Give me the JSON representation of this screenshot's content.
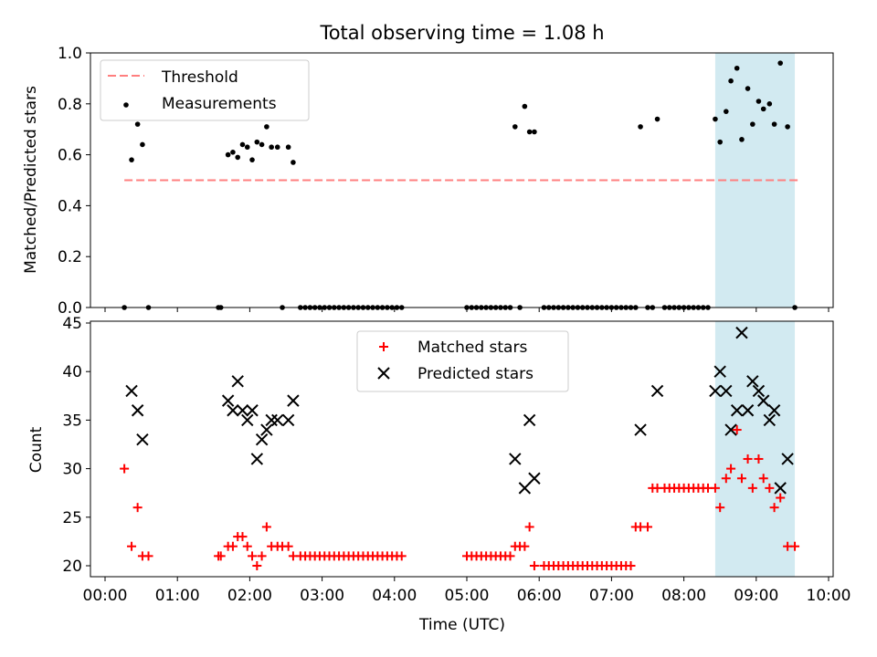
{
  "chart_data": [
    {
      "type": "scatter",
      "title": "Total observing time = 1.08 h",
      "xlabel": "",
      "ylabel": "Matched/Predicted stars",
      "xlim": [
        "00:00",
        "10:00"
      ],
      "ylim": [
        0,
        1.0
      ],
      "yticks": [
        "0.0",
        "0.2",
        "0.4",
        "0.6",
        "0.8",
        "1.0"
      ],
      "highlight_span": [
        "08:26",
        "09:32"
      ],
      "highlight_color": "#add8e6",
      "legend": {
        "placement": "upper left",
        "entries": [
          {
            "label": "Threshold",
            "color": "#ff7f7f",
            "style": "dashed-line"
          },
          {
            "label": "Measurements",
            "color": "#000000",
            "style": "dot"
          }
        ]
      },
      "threshold": {
        "y": 0.5,
        "x": [
          "00:16",
          "09:37"
        ]
      },
      "series": [
        {
          "name": "Measurements",
          "points": [
            [
              "00:16",
              0
            ],
            [
              "00:22",
              0.58
            ],
            [
              "00:27",
              0.72
            ],
            [
              "00:31",
              0.64
            ],
            [
              "00:36",
              0
            ],
            [
              "01:34",
              0
            ],
            [
              "01:36",
              0
            ],
            [
              "01:42",
              0.6
            ],
            [
              "01:46",
              0.61
            ],
            [
              "01:50",
              0.59
            ],
            [
              "01:54",
              0.64
            ],
            [
              "01:58",
              0.63
            ],
            [
              "02:02",
              0.58
            ],
            [
              "02:06",
              0.65
            ],
            [
              "02:10",
              0.64
            ],
            [
              "02:14",
              0.71
            ],
            [
              "02:18",
              0.63
            ],
            [
              "02:23",
              0.63
            ],
            [
              "02:27",
              0
            ],
            [
              "02:32",
              0.63
            ],
            [
              "02:36",
              0.57
            ],
            [
              "02:42",
              0
            ],
            [
              "02:46",
              0
            ],
            [
              "02:50",
              0
            ],
            [
              "02:54",
              0
            ],
            [
              "02:58",
              0
            ],
            [
              "03:02",
              0
            ],
            [
              "03:06",
              0
            ],
            [
              "03:10",
              0
            ],
            [
              "03:14",
              0
            ],
            [
              "03:18",
              0
            ],
            [
              "03:22",
              0
            ],
            [
              "03:26",
              0
            ],
            [
              "03:30",
              0
            ],
            [
              "03:34",
              0
            ],
            [
              "03:38",
              0
            ],
            [
              "03:42",
              0
            ],
            [
              "03:46",
              0
            ],
            [
              "03:50",
              0
            ],
            [
              "03:54",
              0
            ],
            [
              "03:58",
              0
            ],
            [
              "04:02",
              0
            ],
            [
              "04:06",
              0
            ],
            [
              "05:00",
              0
            ],
            [
              "05:04",
              0
            ],
            [
              "05:08",
              0
            ],
            [
              "05:12",
              0
            ],
            [
              "05:16",
              0
            ],
            [
              "05:20",
              0
            ],
            [
              "05:24",
              0
            ],
            [
              "05:28",
              0
            ],
            [
              "05:32",
              0
            ],
            [
              "05:36",
              0
            ],
            [
              "05:40",
              0.71
            ],
            [
              "05:44",
              0
            ],
            [
              "05:48",
              0.79
            ],
            [
              "05:52",
              0.69
            ],
            [
              "05:56",
              0.69
            ],
            [
              "06:04",
              0
            ],
            [
              "06:08",
              0
            ],
            [
              "06:12",
              0
            ],
            [
              "06:16",
              0
            ],
            [
              "06:20",
              0
            ],
            [
              "06:24",
              0
            ],
            [
              "06:28",
              0
            ],
            [
              "06:32",
              0
            ],
            [
              "06:36",
              0
            ],
            [
              "06:40",
              0
            ],
            [
              "06:44",
              0
            ],
            [
              "06:48",
              0
            ],
            [
              "06:52",
              0
            ],
            [
              "06:56",
              0
            ],
            [
              "07:00",
              0
            ],
            [
              "07:04",
              0
            ],
            [
              "07:08",
              0
            ],
            [
              "07:12",
              0
            ],
            [
              "07:16",
              0
            ],
            [
              "07:20",
              0
            ],
            [
              "07:24",
              0.71
            ],
            [
              "07:30",
              0
            ],
            [
              "07:34",
              0
            ],
            [
              "07:38",
              0.74
            ],
            [
              "07:44",
              0
            ],
            [
              "07:48",
              0
            ],
            [
              "07:52",
              0
            ],
            [
              "07:56",
              0
            ],
            [
              "08:00",
              0
            ],
            [
              "08:04",
              0
            ],
            [
              "08:08",
              0
            ],
            [
              "08:12",
              0
            ],
            [
              "08:16",
              0
            ],
            [
              "08:20",
              0
            ],
            [
              "08:26",
              0.74
            ],
            [
              "08:30",
              0.65
            ],
            [
              "08:35",
              0.77
            ],
            [
              "08:39",
              0.89
            ],
            [
              "08:44",
              0.94
            ],
            [
              "08:48",
              0.66
            ],
            [
              "08:53",
              0.86
            ],
            [
              "08:57",
              0.72
            ],
            [
              "09:02",
              0.81
            ],
            [
              "09:06",
              0.78
            ],
            [
              "09:11",
              0.8
            ],
            [
              "09:15",
              0.72
            ],
            [
              "09:20",
              0.96
            ],
            [
              "09:26",
              0.71
            ],
            [
              "09:32",
              0
            ]
          ]
        }
      ]
    },
    {
      "type": "scatter",
      "title": "",
      "xlabel": "Time (UTC)",
      "ylabel": "Count",
      "xlim": [
        "00:00",
        "10:00"
      ],
      "ylim": [
        19,
        45
      ],
      "xticks": [
        "00:00",
        "01:00",
        "02:00",
        "03:00",
        "04:00",
        "05:00",
        "06:00",
        "07:00",
        "08:00",
        "09:00",
        "10:00"
      ],
      "yticks": [
        "20",
        "25",
        "30",
        "35",
        "40",
        "45"
      ],
      "highlight_span": [
        "08:26",
        "09:32"
      ],
      "highlight_color": "#add8e6",
      "legend": {
        "placement": "upper center",
        "entries": [
          {
            "label": "Matched stars",
            "color": "#ff0000",
            "style": "plus"
          },
          {
            "label": "Predicted stars",
            "color": "#000000",
            "style": "x"
          }
        ]
      },
      "series": [
        {
          "name": "Matched stars",
          "points": [
            [
              "00:16",
              30
            ],
            [
              "00:22",
              22
            ],
            [
              "00:27",
              26
            ],
            [
              "00:31",
              21
            ],
            [
              "00:36",
              21
            ],
            [
              "01:34",
              21
            ],
            [
              "01:36",
              21
            ],
            [
              "01:42",
              22
            ],
            [
              "01:46",
              22
            ],
            [
              "01:50",
              23
            ],
            [
              "01:54",
              23
            ],
            [
              "01:58",
              22
            ],
            [
              "02:02",
              21
            ],
            [
              "02:06",
              20
            ],
            [
              "02:10",
              21
            ],
            [
              "02:14",
              24
            ],
            [
              "02:18",
              22
            ],
            [
              "02:23",
              22
            ],
            [
              "02:27",
              22
            ],
            [
              "02:32",
              22
            ],
            [
              "02:36",
              21
            ],
            [
              "02:42",
              21
            ],
            [
              "02:46",
              21
            ],
            [
              "02:50",
              21
            ],
            [
              "02:54",
              21
            ],
            [
              "02:58",
              21
            ],
            [
              "03:02",
              21
            ],
            [
              "03:06",
              21
            ],
            [
              "03:10",
              21
            ],
            [
              "03:14",
              21
            ],
            [
              "03:18",
              21
            ],
            [
              "03:22",
              21
            ],
            [
              "03:26",
              21
            ],
            [
              "03:30",
              21
            ],
            [
              "03:34",
              21
            ],
            [
              "03:38",
              21
            ],
            [
              "03:42",
              21
            ],
            [
              "03:46",
              21
            ],
            [
              "03:50",
              21
            ],
            [
              "03:54",
              21
            ],
            [
              "03:58",
              21
            ],
            [
              "04:02",
              21
            ],
            [
              "04:06",
              21
            ],
            [
              "05:00",
              21
            ],
            [
              "05:04",
              21
            ],
            [
              "05:08",
              21
            ],
            [
              "05:12",
              21
            ],
            [
              "05:16",
              21
            ],
            [
              "05:20",
              21
            ],
            [
              "05:24",
              21
            ],
            [
              "05:28",
              21
            ],
            [
              "05:32",
              21
            ],
            [
              "05:36",
              21
            ],
            [
              "05:40",
              22
            ],
            [
              "05:44",
              22
            ],
            [
              "05:48",
              22
            ],
            [
              "05:52",
              24
            ],
            [
              "05:56",
              20
            ],
            [
              "06:04",
              20
            ],
            [
              "06:08",
              20
            ],
            [
              "06:12",
              20
            ],
            [
              "06:16",
              20
            ],
            [
              "06:20",
              20
            ],
            [
              "06:24",
              20
            ],
            [
              "06:28",
              20
            ],
            [
              "06:32",
              20
            ],
            [
              "06:36",
              20
            ],
            [
              "06:40",
              20
            ],
            [
              "06:44",
              20
            ],
            [
              "06:48",
              20
            ],
            [
              "06:52",
              20
            ],
            [
              "06:56",
              20
            ],
            [
              "07:00",
              20
            ],
            [
              "07:04",
              20
            ],
            [
              "07:08",
              20
            ],
            [
              "07:12",
              20
            ],
            [
              "07:16",
              20
            ],
            [
              "07:20",
              24
            ],
            [
              "07:24",
              24
            ],
            [
              "07:30",
              24
            ],
            [
              "07:34",
              28
            ],
            [
              "07:38",
              28
            ],
            [
              "07:44",
              28
            ],
            [
              "07:48",
              28
            ],
            [
              "07:52",
              28
            ],
            [
              "07:56",
              28
            ],
            [
              "08:00",
              28
            ],
            [
              "08:04",
              28
            ],
            [
              "08:08",
              28
            ],
            [
              "08:12",
              28
            ],
            [
              "08:16",
              28
            ],
            [
              "08:20",
              28
            ],
            [
              "08:26",
              28
            ],
            [
              "08:30",
              26
            ],
            [
              "08:35",
              29
            ],
            [
              "08:39",
              30
            ],
            [
              "08:44",
              34
            ],
            [
              "08:48",
              29
            ],
            [
              "08:53",
              31
            ],
            [
              "08:57",
              28
            ],
            [
              "09:02",
              31
            ],
            [
              "09:06",
              29
            ],
            [
              "09:11",
              28
            ],
            [
              "09:15",
              26
            ],
            [
              "09:20",
              27
            ],
            [
              "09:26",
              22
            ],
            [
              "09:32",
              22
            ]
          ]
        },
        {
          "name": "Predicted stars",
          "points": [
            [
              "00:22",
              38
            ],
            [
              "00:27",
              36
            ],
            [
              "00:31",
              33
            ],
            [
              "01:42",
              37
            ],
            [
              "01:46",
              36
            ],
            [
              "01:50",
              39
            ],
            [
              "01:54",
              36
            ],
            [
              "01:58",
              35
            ],
            [
              "02:02",
              36
            ],
            [
              "02:06",
              31
            ],
            [
              "02:10",
              33
            ],
            [
              "02:14",
              34
            ],
            [
              "02:18",
              35
            ],
            [
              "02:23",
              35
            ],
            [
              "02:32",
              35
            ],
            [
              "02:36",
              37
            ],
            [
              "05:40",
              31
            ],
            [
              "05:48",
              28
            ],
            [
              "05:52",
              35
            ],
            [
              "05:56",
              29
            ],
            [
              "07:24",
              34
            ],
            [
              "07:38",
              38
            ],
            [
              "08:26",
              38
            ],
            [
              "08:30",
              40
            ],
            [
              "08:35",
              38
            ],
            [
              "08:39",
              34
            ],
            [
              "08:44",
              36
            ],
            [
              "08:48",
              44
            ],
            [
              "08:53",
              36
            ],
            [
              "08:57",
              39
            ],
            [
              "09:02",
              38
            ],
            [
              "09:06",
              37
            ],
            [
              "09:11",
              35
            ],
            [
              "09:15",
              36
            ],
            [
              "09:20",
              28
            ],
            [
              "09:26",
              31
            ]
          ]
        }
      ]
    }
  ]
}
